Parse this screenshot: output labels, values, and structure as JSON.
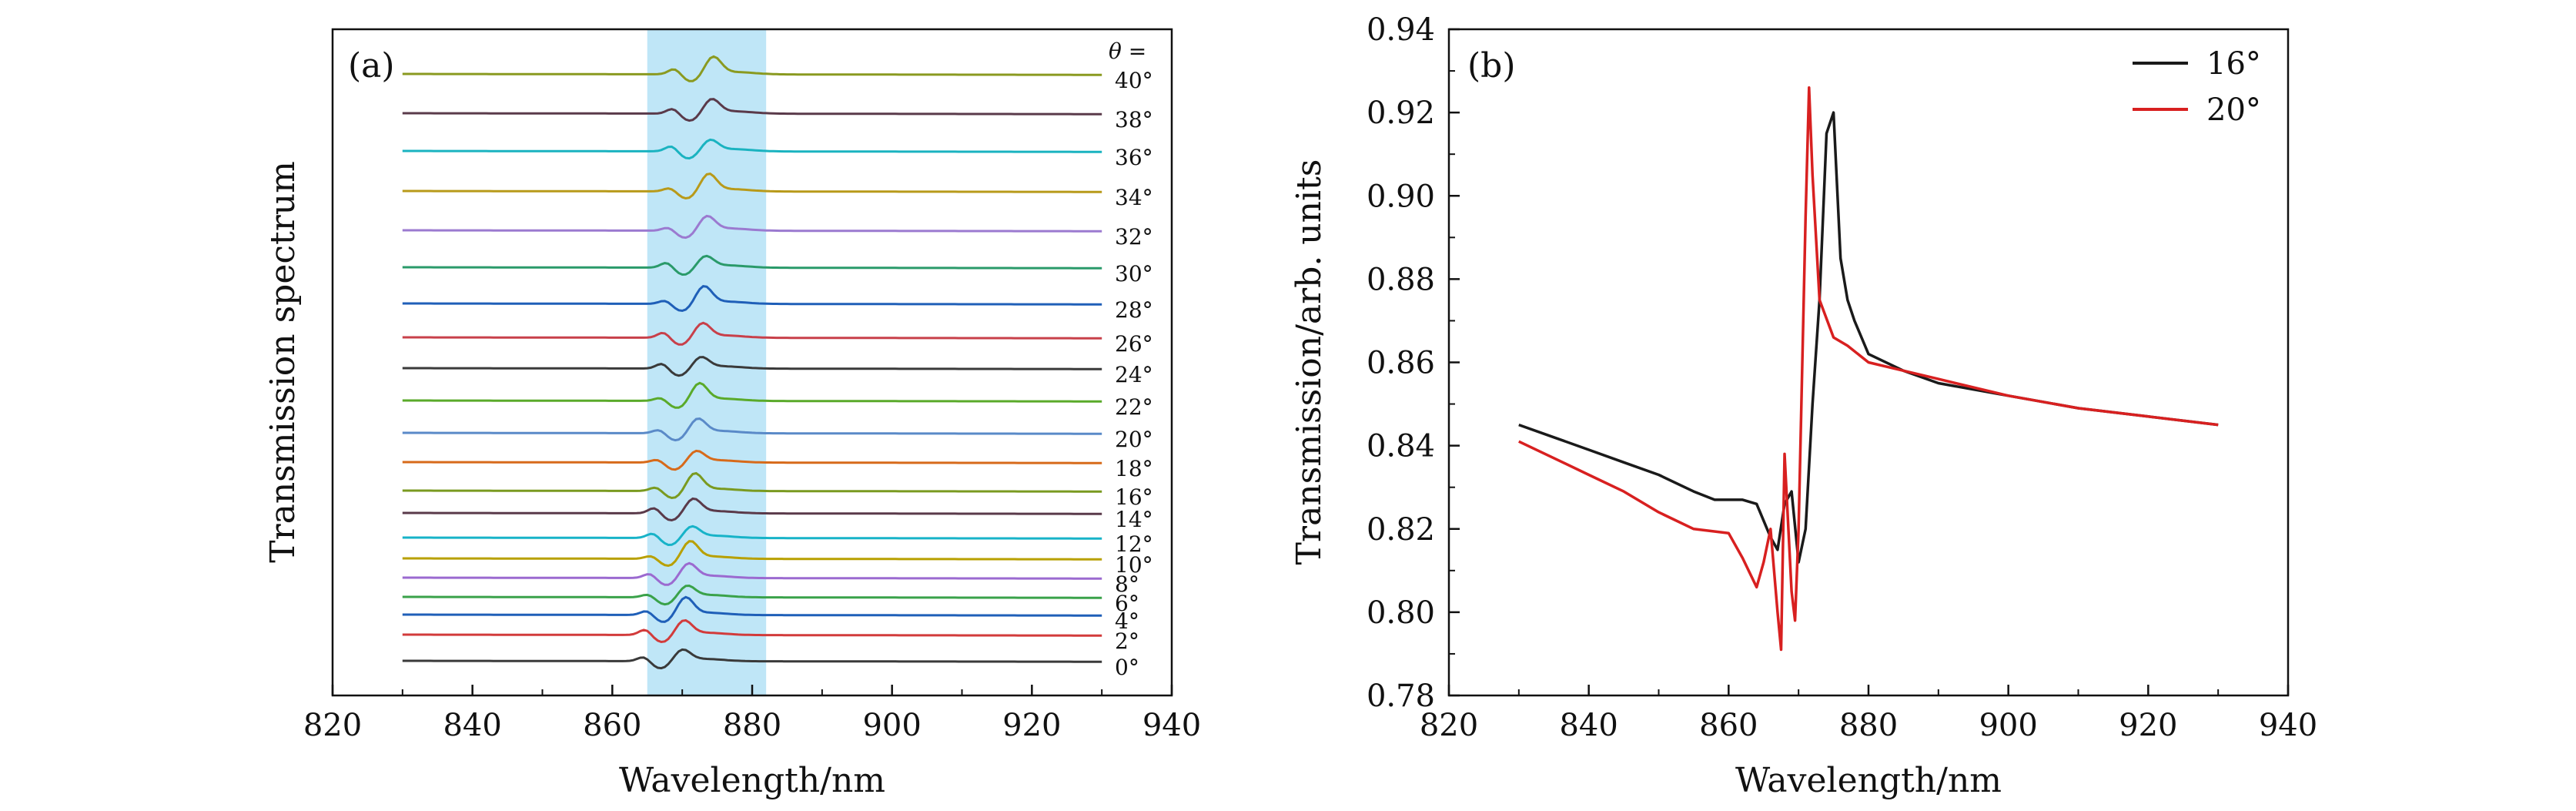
{
  "chart_data": [
    {
      "panel": "(a)",
      "type": "line",
      "xlabel": "Wavelength/nm",
      "ylabel": "Transmission spectrum",
      "xlim": [
        820,
        940
      ],
      "x_ticks": [
        "820",
        "840",
        "860",
        "880",
        "900",
        "920",
        "940"
      ],
      "highlight_band": [
        865,
        882
      ],
      "highlight_color": "#bfe6f7",
      "theta_header": "θ =",
      "series": [
        {
          "name": "0°",
          "color": "#3a3a3a",
          "offset": 0
        },
        {
          "name": "2°",
          "color": "#d23b3b",
          "offset": 1
        },
        {
          "name": "4°",
          "color": "#1f5fb8",
          "offset": 2
        },
        {
          "name": "6°",
          "color": "#3aa24a",
          "offset": 3
        },
        {
          "name": "8°",
          "color": "#9b6ad0",
          "offset": 4
        },
        {
          "name": "10°",
          "color": "#b8a000",
          "offset": 5
        },
        {
          "name": "12°",
          "color": "#17b3c8",
          "offset": 6
        },
        {
          "name": "14°",
          "color": "#5a3a4a",
          "offset": 7
        },
        {
          "name": "16°",
          "color": "#7a9a20",
          "offset": 8
        },
        {
          "name": "18°",
          "color": "#d76a1a",
          "offset": 9
        },
        {
          "name": "20°",
          "color": "#5a8ac8",
          "offset": 10
        },
        {
          "name": "22°",
          "color": "#5aaa2a",
          "offset": 11
        },
        {
          "name": "24°",
          "color": "#3a3a3a",
          "offset": 12
        },
        {
          "name": "26°",
          "color": "#c8404a",
          "offset": 13
        },
        {
          "name": "28°",
          "color": "#1f5fb8",
          "offset": 14
        },
        {
          "name": "30°",
          "color": "#2a9a6a",
          "offset": 15
        },
        {
          "name": "32°",
          "color": "#9b7ad0",
          "offset": 16
        },
        {
          "name": "34°",
          "color": "#b89a1a",
          "offset": 17
        },
        {
          "name": "36°",
          "color": "#1ab3c0",
          "offset": 18
        },
        {
          "name": "38°",
          "color": "#5a3a4a",
          "offset": 19
        },
        {
          "name": "40°",
          "color": "#8a9a20",
          "offset": 20
        }
      ]
    },
    {
      "panel": "(b)",
      "type": "line",
      "xlabel": "Wavelength/nm",
      "ylabel": "Transmission/arb. units",
      "xlim": [
        820,
        940
      ],
      "ylim": [
        0.78,
        0.94
      ],
      "x_ticks": [
        "820",
        "840",
        "860",
        "880",
        "900",
        "920",
        "940"
      ],
      "y_ticks": [
        "0.78",
        "0.80",
        "0.82",
        "0.84",
        "0.86",
        "0.88",
        "0.90",
        "0.92",
        "0.94"
      ],
      "legend_position": "top-right",
      "series": [
        {
          "name": "16°",
          "color": "#1a1a1a",
          "x": [
            830,
            835,
            840,
            845,
            850,
            855,
            858,
            862,
            864,
            866,
            867,
            868,
            869,
            870,
            871,
            872,
            873,
            874,
            875,
            876,
            877,
            878,
            880,
            885,
            890,
            900,
            910,
            920,
            930
          ],
          "y": [
            0.845,
            0.842,
            0.839,
            0.836,
            0.833,
            0.829,
            0.827,
            0.827,
            0.826,
            0.818,
            0.815,
            0.826,
            0.829,
            0.812,
            0.82,
            0.85,
            0.875,
            0.915,
            0.92,
            0.885,
            0.875,
            0.87,
            0.862,
            0.858,
            0.855,
            0.852,
            0.849,
            0.847,
            0.845
          ]
        },
        {
          "name": "20°",
          "color": "#d82020",
          "x": [
            830,
            835,
            840,
            845,
            850,
            855,
            860,
            862,
            864,
            865,
            866,
            867,
            867.5,
            868,
            869,
            869.5,
            870,
            871,
            871.5,
            872,
            873,
            875,
            877,
            880,
            885,
            890,
            900,
            910,
            920,
            930
          ],
          "y": [
            0.841,
            0.837,
            0.833,
            0.829,
            0.824,
            0.82,
            0.819,
            0.813,
            0.806,
            0.812,
            0.82,
            0.8,
            0.791,
            0.838,
            0.805,
            0.798,
            0.82,
            0.895,
            0.926,
            0.905,
            0.875,
            0.866,
            0.864,
            0.86,
            0.858,
            0.856,
            0.852,
            0.849,
            0.847,
            0.845
          ]
        }
      ]
    }
  ]
}
